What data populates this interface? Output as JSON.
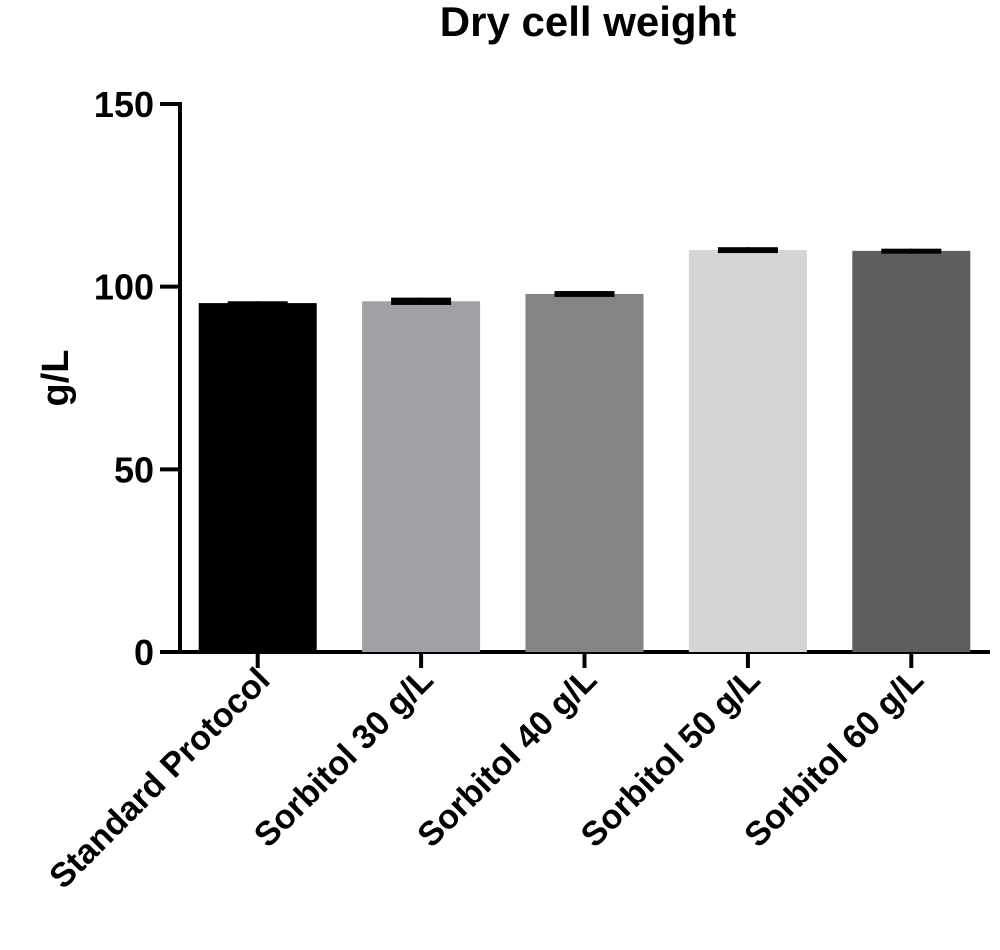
{
  "chart_data": {
    "type": "bar",
    "title": "Dry cell weight",
    "ylabel": "g/L",
    "xlabel": "",
    "ylim": [
      0,
      150
    ],
    "yticks": [
      0,
      50,
      100,
      150
    ],
    "grid": false,
    "categories": [
      "Standard Protocol",
      "Sorbitol 30 g/L",
      "Sorbitol 40 g/L",
      "Sorbitol 50 g/L",
      "Sorbitol 60 g/L"
    ],
    "values": [
      95.5,
      96,
      98,
      110,
      109.8
    ],
    "error": [
      0.5,
      1.0,
      0.8,
      0.8,
      0.6
    ],
    "colors": [
      "#000000",
      "#a1a0a5",
      "#848484",
      "#d5d5d5",
      "#5e5e5e"
    ]
  }
}
